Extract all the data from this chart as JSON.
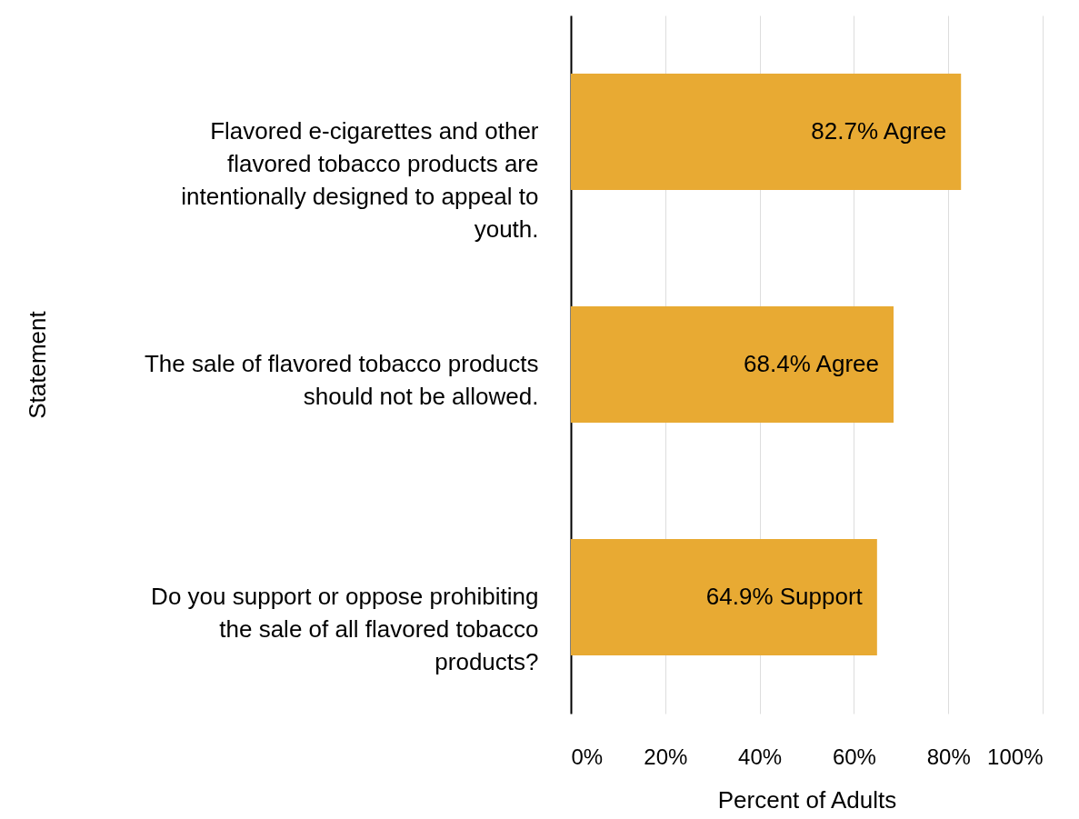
{
  "chart_data": {
    "type": "bar",
    "orientation": "horizontal",
    "xlabel": "Percent of Adults",
    "ylabel": "Statement",
    "categories": [
      "Flavored e-cigarettes and other flavored tobacco products are intentionally designed to appeal to youth.",
      "The sale of flavored tobacco products should not be allowed.",
      "Do you support or oppose prohibiting the sale of all flavored tobacco products?"
    ],
    "values": [
      82.7,
      68.4,
      64.9
    ],
    "value_labels": [
      "82.7% Agree",
      "68.4% Agree",
      "64.9% Support"
    ],
    "color": "#e8aa33",
    "xlim": [
      0,
      100
    ],
    "xticks": [
      {
        "value": 0,
        "label": "0%"
      },
      {
        "value": 20,
        "label": "20%"
      },
      {
        "value": 40,
        "label": "40%"
      },
      {
        "value": 60,
        "label": "60%"
      },
      {
        "value": 80,
        "label": "80%"
      },
      {
        "value": 100,
        "label": "100%"
      }
    ],
    "grid": "x"
  }
}
